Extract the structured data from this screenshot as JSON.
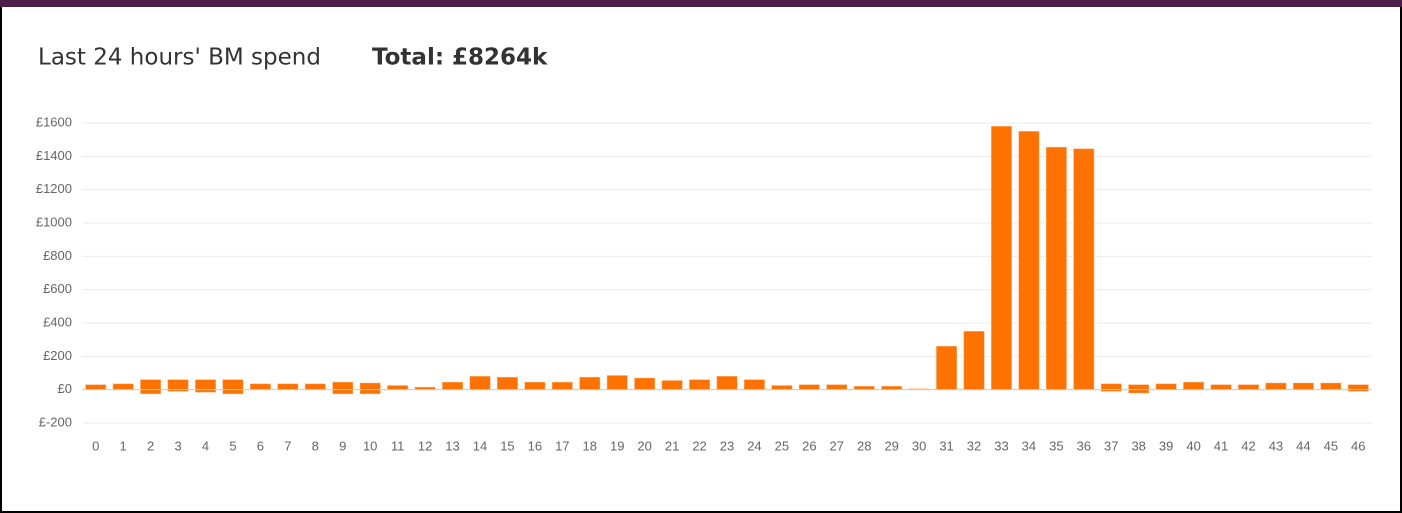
{
  "chart_data": {
    "type": "bar",
    "title": "Last 24 hours' BM spend",
    "subtitle": "Total: £8264k",
    "categories": [
      "0",
      "1",
      "2",
      "3",
      "4",
      "5",
      "6",
      "7",
      "8",
      "9",
      "10",
      "11",
      "12",
      "13",
      "14",
      "15",
      "16",
      "17",
      "18",
      "19",
      "20",
      "21",
      "22",
      "23",
      "24",
      "25",
      "26",
      "27",
      "28",
      "29",
      "30",
      "31",
      "32",
      "33",
      "34",
      "35",
      "36",
      "37",
      "38",
      "39",
      "40",
      "41",
      "42",
      "43",
      "44",
      "45",
      "46"
    ],
    "series": [
      {
        "color": "#ff7200",
        "values": [
          30,
          35,
          60,
          60,
          60,
          60,
          35,
          35,
          35,
          45,
          40,
          25,
          15,
          45,
          80,
          75,
          45,
          45,
          75,
          85,
          70,
          55,
          60,
          80,
          60,
          25,
          30,
          30,
          20,
          20,
          5,
          260,
          350,
          1580,
          1550,
          1455,
          1445,
          35,
          30,
          35,
          45,
          30,
          30,
          40,
          40,
          40,
          30
        ]
      },
      {
        "color": "#ff7200",
        "values": [
          0,
          0,
          -25,
          -10,
          -15,
          -25,
          0,
          0,
          0,
          -25,
          -25,
          0,
          0,
          0,
          0,
          0,
          0,
          0,
          0,
          0,
          0,
          0,
          0,
          0,
          0,
          0,
          0,
          0,
          0,
          0,
          0,
          0,
          0,
          0,
          0,
          0,
          0,
          -10,
          -20,
          0,
          0,
          0,
          0,
          0,
          0,
          0,
          -10
        ]
      }
    ],
    "ylim": [
      -200,
      1600
    ],
    "yticks": [
      {
        "value": -200,
        "label": "£-200"
      },
      {
        "value": 0,
        "label": "£0"
      },
      {
        "value": 200,
        "label": "£200"
      },
      {
        "value": 400,
        "label": "£400"
      },
      {
        "value": 600,
        "label": "£600"
      },
      {
        "value": 800,
        "label": "£800"
      },
      {
        "value": 1000,
        "label": "£1000"
      },
      {
        "value": 1200,
        "label": "£1200"
      },
      {
        "value": 1400,
        "label": "£1400"
      },
      {
        "value": 1600,
        "label": "£1600"
      }
    ],
    "grid": true
  }
}
